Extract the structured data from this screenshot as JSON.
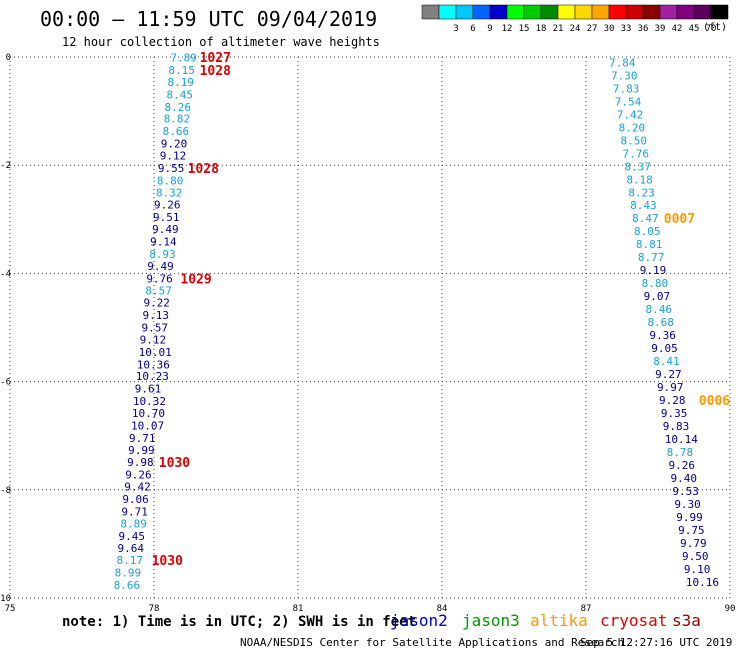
{
  "header": {
    "title": "00:00 – 11:59 UTC 09/04/2019",
    "subtitle": "12 hour collection of altimeter wave heights"
  },
  "colorbar": {
    "unit": "(ft)",
    "swatches": [
      {
        "color": "#808080",
        "label": ""
      },
      {
        "color": "#00ffff",
        "label": "3"
      },
      {
        "color": "#00c8ff",
        "label": "6"
      },
      {
        "color": "#0064ff",
        "label": "9"
      },
      {
        "color": "#0000cd",
        "label": "12"
      },
      {
        "color": "#00ff00",
        "label": "15"
      },
      {
        "color": "#00cd00",
        "label": "18"
      },
      {
        "color": "#008b00",
        "label": "21"
      },
      {
        "color": "#ffff00",
        "label": "24"
      },
      {
        "color": "#ffd700",
        "label": "27"
      },
      {
        "color": "#ffa500",
        "label": "30"
      },
      {
        "color": "#ff0000",
        "label": "33"
      },
      {
        "color": "#cd0000",
        "label": "36"
      },
      {
        "color": "#8b0000",
        "label": "39"
      },
      {
        "color": "#a020a0",
        "label": "42"
      },
      {
        "color": "#800080",
        "label": "45"
      },
      {
        "color": "#5a005a",
        "label": "70"
      },
      {
        "color": "#000000",
        "label": ""
      }
    ]
  },
  "footer": {
    "note": "note: 1) Time is in UTC; 2) SWH is in feet",
    "legend": [
      {
        "name": "jason2",
        "color": "#0000cc"
      },
      {
        "name": "jason3",
        "color": "#009900"
      },
      {
        "name": "altika",
        "color": "#ff9900"
      },
      {
        "name": "cryosat",
        "color": "#dd0000"
      },
      {
        "name": "s3a",
        "color": "#990000"
      }
    ],
    "credit": "NOAA/NESDIS Center for Satellite Applications and Research",
    "timestamp": "Sep  5 12:27:16 UTC 2019"
  },
  "chart_data": {
    "type": "scatter",
    "xlim": [
      75,
      90
    ],
    "ylim": [
      -10,
      0
    ],
    "x_ticks": [
      "75",
      "78",
      "81",
      "84",
      "87",
      "90"
    ],
    "y_ticks": [
      "0",
      "-2",
      "-4",
      "-6",
      "-8",
      "-10"
    ],
    "grid": true,
    "series": [
      {
        "name": "track-west",
        "points": [
          {
            "x": 78.34,
            "y": -0.01,
            "label": "7.89",
            "color": "#17a2d8"
          },
          {
            "x": 78.3,
            "y": -0.24,
            "label": "8.15",
            "color": "#17a2d8"
          },
          {
            "x": 78.28,
            "y": -0.46,
            "label": "8.19",
            "color": "#17a2d8"
          },
          {
            "x": 78.26,
            "y": -0.69,
            "label": "8.45",
            "color": "#17a2d8"
          },
          {
            "x": 78.22,
            "y": -0.92,
            "label": "8.26",
            "color": "#17a2d8"
          },
          {
            "x": 78.2,
            "y": -1.14,
            "label": "8.82",
            "color": "#17a2d8"
          },
          {
            "x": 78.18,
            "y": -1.37,
            "label": "8.66",
            "color": "#17a2d8"
          },
          {
            "x": 78.14,
            "y": -1.6,
            "label": "9.20",
            "color": "#00008b"
          },
          {
            "x": 78.12,
            "y": -1.82,
            "label": "9.12",
            "color": "#00008b"
          },
          {
            "x": 78.08,
            "y": -2.05,
            "label": "9.55",
            "color": "#00008b"
          },
          {
            "x": 78.06,
            "y": -2.28,
            "label": "8.80",
            "color": "#17a2d8"
          },
          {
            "x": 78.04,
            "y": -2.5,
            "label": "8.32",
            "color": "#17a2d8"
          },
          {
            "x": 78.0,
            "y": -2.73,
            "label": "9.26",
            "color": "#00008b"
          },
          {
            "x": 77.98,
            "y": -2.96,
            "label": "9.51",
            "color": "#00008b"
          },
          {
            "x": 77.96,
            "y": -3.18,
            "label": "9.49",
            "color": "#00008b"
          },
          {
            "x": 77.92,
            "y": -3.41,
            "label": "9.14",
            "color": "#00008b"
          },
          {
            "x": 77.9,
            "y": -3.64,
            "label": "8.93",
            "color": "#17a2d8"
          },
          {
            "x": 77.86,
            "y": -3.86,
            "label": "9.49",
            "color": "#00008b"
          },
          {
            "x": 77.84,
            "y": -4.09,
            "label": "9.76",
            "color": "#00008b"
          },
          {
            "x": 77.82,
            "y": -4.32,
            "label": "8.57",
            "color": "#17a2d8"
          },
          {
            "x": 77.78,
            "y": -4.54,
            "label": "9.22",
            "color": "#00008b"
          },
          {
            "x": 77.76,
            "y": -4.77,
            "label": "9.13",
            "color": "#00008b"
          },
          {
            "x": 77.74,
            "y": -5.0,
            "label": "9.57",
            "color": "#00008b"
          },
          {
            "x": 77.7,
            "y": -5.22,
            "label": "9.12",
            "color": "#00008b"
          },
          {
            "x": 77.68,
            "y": -5.45,
            "label": "10.01",
            "color": "#00008b"
          },
          {
            "x": 77.64,
            "y": -5.68,
            "label": "10.36",
            "color": "#00008b"
          },
          {
            "x": 77.62,
            "y": -5.9,
            "label": "10.23",
            "color": "#00008b"
          },
          {
            "x": 77.6,
            "y": -6.13,
            "label": "9.61",
            "color": "#00008b"
          },
          {
            "x": 77.56,
            "y": -6.36,
            "label": "10.32",
            "color": "#00008b"
          },
          {
            "x": 77.54,
            "y": -6.58,
            "label": "10.70",
            "color": "#00008b"
          },
          {
            "x": 77.52,
            "y": -6.81,
            "label": "10.07",
            "color": "#00008b"
          },
          {
            "x": 77.48,
            "y": -7.04,
            "label": "9.71",
            "color": "#00008b"
          },
          {
            "x": 77.46,
            "y": -7.26,
            "label": "9.99",
            "color": "#00008b"
          },
          {
            "x": 77.44,
            "y": -7.49,
            "label": "9.98",
            "color": "#00008b"
          },
          {
            "x": 77.4,
            "y": -7.72,
            "label": "9.26",
            "color": "#00008b"
          },
          {
            "x": 77.38,
            "y": -7.94,
            "label": "9.42",
            "color": "#00008b"
          },
          {
            "x": 77.34,
            "y": -8.17,
            "label": "9.06",
            "color": "#00008b"
          },
          {
            "x": 77.32,
            "y": -8.4,
            "label": "9.71",
            "color": "#00008b"
          },
          {
            "x": 77.3,
            "y": -8.62,
            "label": "8.89",
            "color": "#17a2d8"
          },
          {
            "x": 77.26,
            "y": -8.85,
            "label": "9.45",
            "color": "#00008b"
          },
          {
            "x": 77.24,
            "y": -9.08,
            "label": "9.64",
            "color": "#00008b"
          },
          {
            "x": 77.22,
            "y": -9.3,
            "label": "8.17",
            "color": "#17a2d8"
          },
          {
            "x": 77.18,
            "y": -9.53,
            "label": "8.99",
            "color": "#17a2d8"
          },
          {
            "x": 77.16,
            "y": -9.76,
            "label": "8.66",
            "color": "#17a2d8"
          }
        ]
      },
      {
        "name": "track-east",
        "points": [
          {
            "x": 87.48,
            "y": -0.1,
            "label": "7.84",
            "color": "#17a2d8"
          },
          {
            "x": 87.52,
            "y": -0.34,
            "label": "7.30",
            "color": "#17a2d8"
          },
          {
            "x": 87.56,
            "y": -0.58,
            "label": "7.83",
            "color": "#17a2d8"
          },
          {
            "x": 87.6,
            "y": -0.82,
            "label": "7.54",
            "color": "#17a2d8"
          },
          {
            "x": 87.64,
            "y": -1.06,
            "label": "7.42",
            "color": "#17a2d8"
          },
          {
            "x": 87.68,
            "y": -1.3,
            "label": "8.20",
            "color": "#17a2d8"
          },
          {
            "x": 87.72,
            "y": -1.54,
            "label": "8.50",
            "color": "#17a2d8"
          },
          {
            "x": 87.76,
            "y": -1.78,
            "label": "7.76",
            "color": "#17a2d8"
          },
          {
            "x": 87.8,
            "y": -2.02,
            "label": "8.37",
            "color": "#17a2d8"
          },
          {
            "x": 87.84,
            "y": -2.26,
            "label": "8.18",
            "color": "#17a2d8"
          },
          {
            "x": 87.88,
            "y": -2.5,
            "label": "8.23",
            "color": "#17a2d8"
          },
          {
            "x": 87.92,
            "y": -2.74,
            "label": "8.43",
            "color": "#17a2d8"
          },
          {
            "x": 87.96,
            "y": -2.98,
            "label": "8.47",
            "color": "#17a2d8"
          },
          {
            "x": 88.0,
            "y": -3.22,
            "label": "8.05",
            "color": "#17a2d8"
          },
          {
            "x": 88.04,
            "y": -3.46,
            "label": "8.81",
            "color": "#17a2d8"
          },
          {
            "x": 88.08,
            "y": -3.7,
            "label": "8.77",
            "color": "#17a2d8"
          },
          {
            "x": 88.12,
            "y": -3.94,
            "label": "9.19",
            "color": "#00008b"
          },
          {
            "x": 88.16,
            "y": -4.18,
            "label": "8.80",
            "color": "#17a2d8"
          },
          {
            "x": 88.2,
            "y": -4.42,
            "label": "9.07",
            "color": "#00008b"
          },
          {
            "x": 88.24,
            "y": -4.66,
            "label": "8.46",
            "color": "#17a2d8"
          },
          {
            "x": 88.28,
            "y": -4.9,
            "label": "8.68",
            "color": "#17a2d8"
          },
          {
            "x": 88.32,
            "y": -5.14,
            "label": "9.36",
            "color": "#00008b"
          },
          {
            "x": 88.36,
            "y": -5.38,
            "label": "9.05",
            "color": "#00008b"
          },
          {
            "x": 88.4,
            "y": -5.62,
            "label": "8.41",
            "color": "#17a2d8"
          },
          {
            "x": 88.44,
            "y": -5.86,
            "label": "9.27",
            "color": "#00008b"
          },
          {
            "x": 88.48,
            "y": -6.1,
            "label": "9.97",
            "color": "#00008b"
          },
          {
            "x": 88.52,
            "y": -6.34,
            "label": "9.28",
            "color": "#00008b"
          },
          {
            "x": 88.56,
            "y": -6.58,
            "label": "9.35",
            "color": "#00008b"
          },
          {
            "x": 88.6,
            "y": -6.82,
            "label": "9.83",
            "color": "#00008b"
          },
          {
            "x": 88.64,
            "y": -7.06,
            "label": "10.14",
            "color": "#00008b"
          },
          {
            "x": 88.68,
            "y": -7.3,
            "label": "8.78",
            "color": "#17a2d8"
          },
          {
            "x": 88.72,
            "y": -7.54,
            "label": "9.26",
            "color": "#00008b"
          },
          {
            "x": 88.76,
            "y": -7.78,
            "label": "9.40",
            "color": "#00008b"
          },
          {
            "x": 88.8,
            "y": -8.02,
            "label": "9.53",
            "color": "#00008b"
          },
          {
            "x": 88.84,
            "y": -8.26,
            "label": "9.30",
            "color": "#00008b"
          },
          {
            "x": 88.88,
            "y": -8.5,
            "label": "9.99",
            "color": "#00008b"
          },
          {
            "x": 88.92,
            "y": -8.74,
            "label": "9.75",
            "color": "#00008b"
          },
          {
            "x": 88.96,
            "y": -8.98,
            "label": "9.79",
            "color": "#00008b"
          },
          {
            "x": 89.0,
            "y": -9.22,
            "label": "9.50",
            "color": "#00008b"
          },
          {
            "x": 89.04,
            "y": -9.46,
            "label": "9.10",
            "color": "#00008b"
          },
          {
            "x": 89.08,
            "y": -9.7,
            "label": "10.16",
            "color": "#00008b"
          }
        ]
      }
    ],
    "annotations": [
      {
        "x": 78.95,
        "y": 0.0,
        "text": "1027",
        "color": "#dd0000"
      },
      {
        "x": 78.95,
        "y": -0.24,
        "text": "1028",
        "color": "#dd0000"
      },
      {
        "x": 78.7,
        "y": -2.05,
        "text": "1028",
        "color": "#dd0000"
      },
      {
        "x": 78.55,
        "y": -4.09,
        "text": "1029",
        "color": "#dd0000"
      },
      {
        "x": 78.1,
        "y": -7.49,
        "text": "1030",
        "color": "#dd0000"
      },
      {
        "x": 77.95,
        "y": -9.3,
        "text": "1030",
        "color": "#dd0000"
      },
      {
        "x": 88.62,
        "y": -2.98,
        "text": "0007",
        "color": "#ff9900"
      },
      {
        "x": 89.35,
        "y": -6.34,
        "text": "0006",
        "color": "#ff9900"
      }
    ]
  }
}
